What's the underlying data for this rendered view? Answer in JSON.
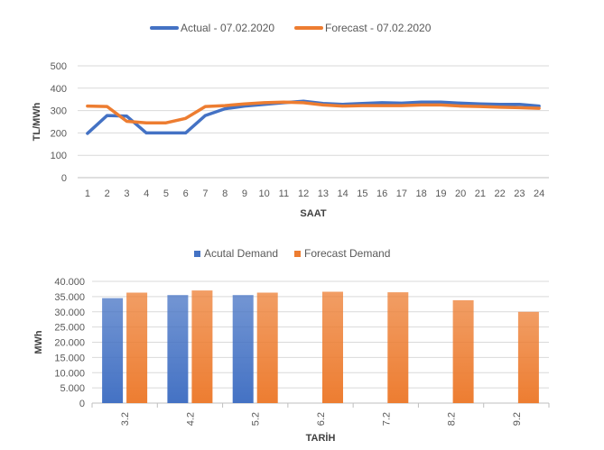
{
  "chart_data": [
    {
      "type": "line",
      "title": "",
      "xlabel": "SAAT",
      "ylabel": "TL/MWh",
      "ylim": [
        0,
        500
      ],
      "yticks": [
        "0",
        "100",
        "200",
        "300",
        "400",
        "500"
      ],
      "x": [
        1,
        2,
        3,
        4,
        5,
        6,
        7,
        8,
        9,
        10,
        11,
        12,
        13,
        14,
        15,
        16,
        17,
        18,
        19,
        20,
        21,
        22,
        23,
        24
      ],
      "grid": true,
      "legend_position": "top",
      "series": [
        {
          "name": "Actual - 07.02.2020",
          "color": "#4472C4",
          "values": [
            198,
            278,
            275,
            200,
            200,
            200,
            278,
            308,
            320,
            328,
            335,
            342,
            332,
            328,
            332,
            335,
            333,
            338,
            338,
            333,
            330,
            328,
            328,
            320
          ]
        },
        {
          "name": "Forecast - 07.02.2020",
          "color": "#ED7D31",
          "values": [
            320,
            318,
            252,
            245,
            245,
            265,
            318,
            322,
            330,
            335,
            338,
            335,
            325,
            320,
            322,
            322,
            322,
            325,
            325,
            320,
            318,
            315,
            313,
            310
          ]
        }
      ]
    },
    {
      "type": "bar",
      "title": "",
      "xlabel": "TARİH",
      "ylabel": "MWh",
      "ylim": [
        0,
        40000
      ],
      "yticks": [
        "0",
        "5.000",
        "10.000",
        "15.000",
        "20.000",
        "25.000",
        "30.000",
        "35.000",
        "40.000"
      ],
      "categories": [
        "3.2",
        "4.2",
        "5.2",
        "6.2",
        "7.2",
        "8.2",
        "9.2"
      ],
      "grid": true,
      "legend_position": "top",
      "series": [
        {
          "name": "Acutal Demand",
          "color": "#4472C4",
          "values": [
            34500,
            35500,
            35500,
            null,
            null,
            null,
            null
          ]
        },
        {
          "name": "Forecast Demand",
          "color": "#ED7D31",
          "values": [
            36300,
            37000,
            36300,
            36600,
            36400,
            33800,
            30000
          ]
        }
      ]
    }
  ]
}
